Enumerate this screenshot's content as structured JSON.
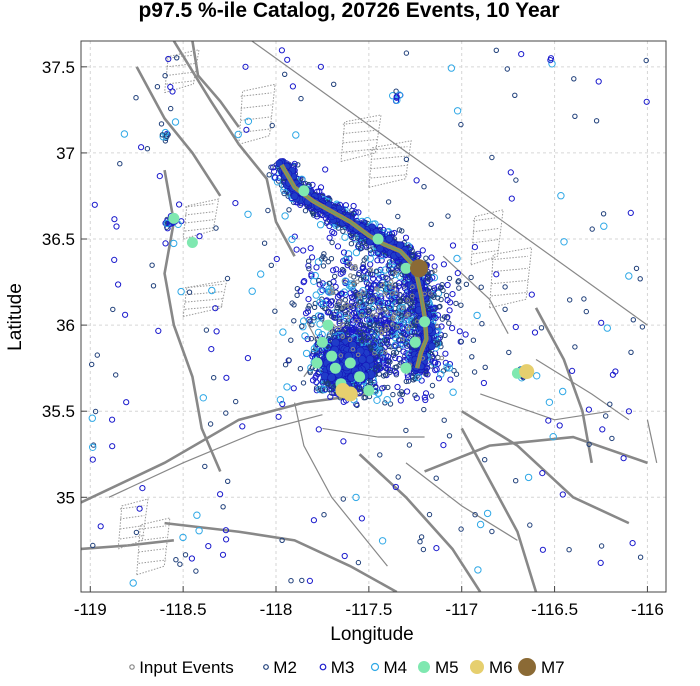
{
  "chart_data": {
    "type": "scatter",
    "title": "p97.5 %-ile Catalog, 20726 Events, 10 Year",
    "xlabel": "Longitude",
    "ylabel": "Latitude",
    "xlim": [
      -119.05,
      -115.9
    ],
    "ylim": [
      34.45,
      37.65
    ],
    "x_ticks": [
      -119,
      -118.5,
      -118,
      -117.5,
      -117,
      -116.5,
      -116
    ],
    "x_tick_labels": [
      "-119",
      "-118.5",
      "-118",
      "-117.5",
      "-117",
      "-116.5",
      "-116"
    ],
    "y_ticks": [
      35,
      35.5,
      36,
      36.5,
      37,
      37.5
    ],
    "y_tick_labels": [
      "35",
      "35.5",
      "36",
      "36.5",
      "37",
      "37.5"
    ],
    "grid": true,
    "legend_position": "bottom",
    "legend": [
      {
        "label": "Input Events",
        "color": "#888888",
        "style": "open"
      },
      {
        "label": "M2",
        "color": "#1f3f7a",
        "style": "open"
      },
      {
        "label": "M3",
        "color": "#1a1acc",
        "style": "open"
      },
      {
        "label": "M4",
        "color": "#2fa8e6",
        "style": "open"
      },
      {
        "label": "M5",
        "color": "#7fe8b0",
        "style": "filled"
      },
      {
        "label": "M6",
        "color": "#e6cf6e",
        "style": "filled"
      },
      {
        "label": "M7",
        "color": "#8b6a35",
        "style": "filled"
      }
    ],
    "input_rupture": [
      [
        -117.97,
        36.93
      ],
      [
        -117.9,
        36.8
      ],
      [
        -117.8,
        36.72
      ],
      [
        -117.7,
        36.66
      ],
      [
        -117.6,
        36.6
      ],
      [
        -117.5,
        36.52
      ],
      [
        -117.42,
        36.47
      ],
      [
        -117.33,
        36.43
      ],
      [
        -117.27,
        36.36
      ],
      [
        -117.24,
        36.28
      ],
      [
        -117.22,
        36.18
      ],
      [
        -117.2,
        36.05
      ],
      [
        -117.19,
        35.92
      ],
      [
        -117.22,
        35.84
      ],
      [
        -117.24,
        35.75
      ]
    ],
    "series": [
      {
        "name": "M5",
        "color": "#7fe8b0",
        "points": [
          [
            -117.75,
            35.9
          ],
          [
            -117.7,
            35.82
          ],
          [
            -117.68,
            35.75
          ],
          [
            -117.6,
            35.78
          ],
          [
            -117.55,
            35.7
          ],
          [
            -117.65,
            35.66
          ],
          [
            -117.78,
            35.78
          ],
          [
            -117.5,
            35.62
          ],
          [
            -117.25,
            35.9
          ],
          [
            -117.3,
            35.75
          ],
          [
            -118.55,
            36.62
          ],
          [
            -118.45,
            36.48
          ],
          [
            -117.85,
            36.78
          ],
          [
            -117.45,
            36.5
          ],
          [
            -117.3,
            36.33
          ],
          [
            -117.2,
            36.02
          ],
          [
            -116.7,
            35.72
          ],
          [
            -117.72,
            36.0
          ]
        ]
      },
      {
        "name": "M6",
        "color": "#e6cf6e",
        "points": [
          [
            -117.6,
            35.6
          ],
          [
            -117.64,
            35.62
          ],
          [
            -116.65,
            35.73
          ]
        ]
      },
      {
        "name": "M7",
        "color": "#8b6a35",
        "points": [
          [
            -117.23,
            36.33
          ]
        ]
      }
    ]
  }
}
